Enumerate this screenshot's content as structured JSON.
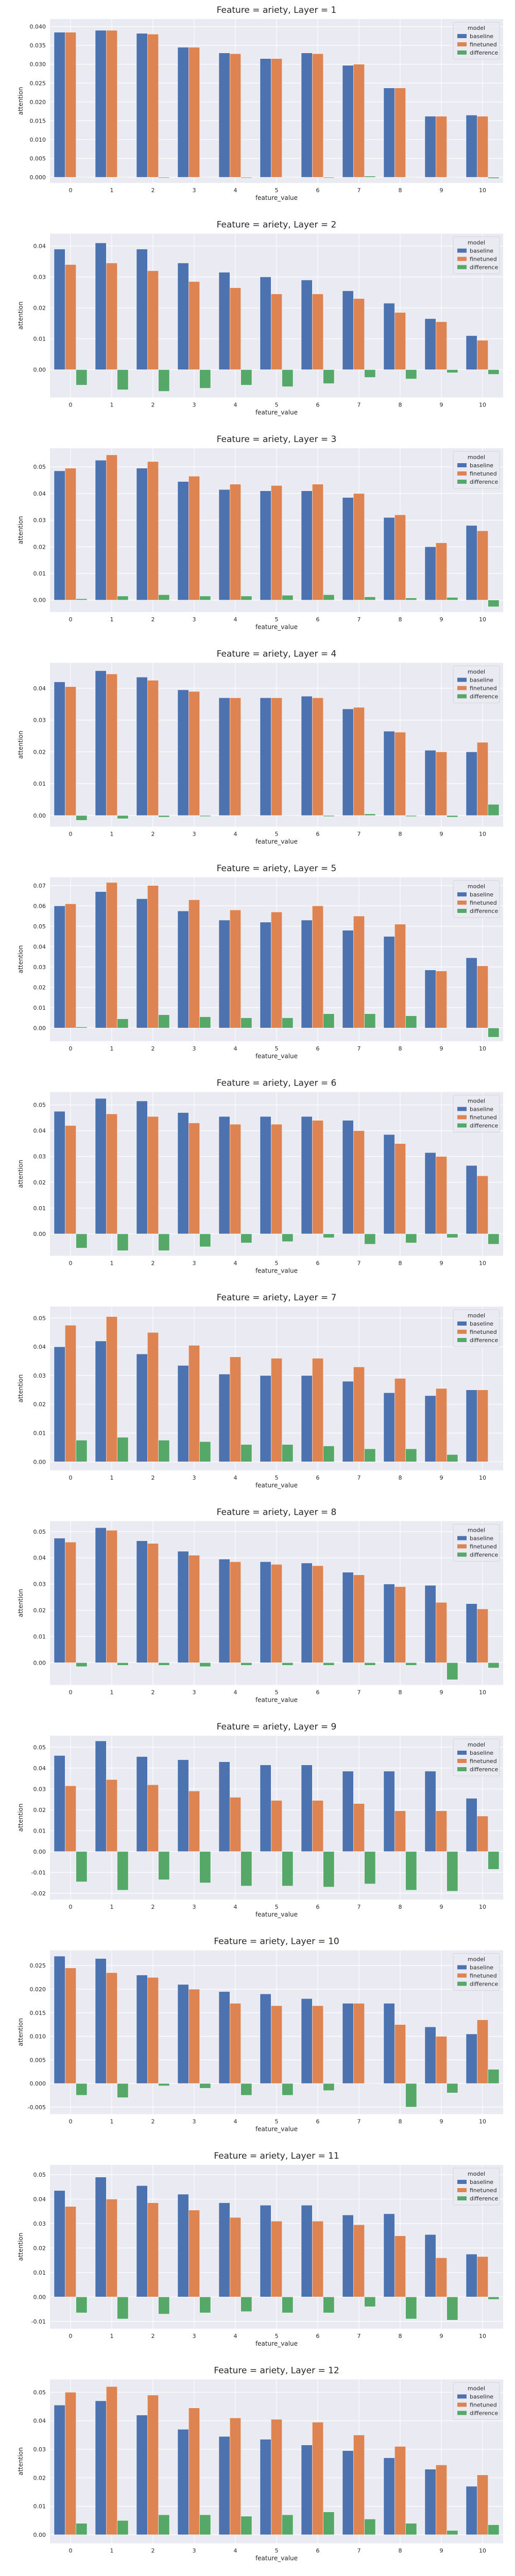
{
  "x_categories": [
    "0",
    "1",
    "2",
    "3",
    "4",
    "5",
    "6",
    "7",
    "8",
    "9",
    "10"
  ],
  "series_colors": {
    "baseline": "#4c72b0",
    "finetuned": "#dd8452",
    "difference": "#55a868"
  },
  "chart_data": [
    {
      "type": "bar",
      "title": "Feature = ariety, Layer = 1",
      "xlabel": "feature_value",
      "ylabel": "attention",
      "legend_title": "model",
      "legend_position": "top-right",
      "yticks": [
        "0.000",
        "0.005",
        "0.010",
        "0.015",
        "0.020",
        "0.025",
        "0.030",
        "0.035",
        "0.040"
      ],
      "categories": [
        "0",
        "1",
        "2",
        "3",
        "4",
        "5",
        "6",
        "7",
        "8",
        "9",
        "10"
      ],
      "series": [
        {
          "name": "baseline",
          "values": [
            0.0385,
            0.039,
            0.0382,
            0.0345,
            0.033,
            0.0315,
            0.033,
            0.0297,
            0.0237,
            0.0162,
            0.0165
          ]
        },
        {
          "name": "finetuned",
          "values": [
            0.0385,
            0.039,
            0.038,
            0.0345,
            0.0328,
            0.0315,
            0.0328,
            0.03,
            0.0237,
            0.0162,
            0.0162
          ]
        },
        {
          "name": "difference",
          "values": [
            0.0,
            0.0,
            -0.0002,
            0.0,
            -0.0002,
            0.0,
            -0.0002,
            0.0003,
            0.0,
            0.0,
            -0.0003
          ]
        }
      ]
    },
    {
      "type": "bar",
      "title": "Feature = ariety, Layer = 2",
      "xlabel": "feature_value",
      "ylabel": "attention",
      "legend_title": "model",
      "legend_position": "top-right",
      "yticks": [
        "0.00",
        "0.01",
        "0.02",
        "0.03",
        "0.04"
      ],
      "categories": [
        "0",
        "1",
        "2",
        "3",
        "4",
        "5",
        "6",
        "7",
        "8",
        "9",
        "10"
      ],
      "series": [
        {
          "name": "baseline",
          "values": [
            0.039,
            0.041,
            0.039,
            0.0345,
            0.0315,
            0.03,
            0.029,
            0.0255,
            0.0215,
            0.0165,
            0.011
          ]
        },
        {
          "name": "finetuned",
          "values": [
            0.034,
            0.0345,
            0.032,
            0.0285,
            0.0265,
            0.0245,
            0.0245,
            0.023,
            0.0185,
            0.0155,
            0.0095
          ]
        },
        {
          "name": "difference",
          "values": [
            -0.005,
            -0.0065,
            -0.007,
            -0.006,
            -0.005,
            -0.0055,
            -0.0045,
            -0.0025,
            -0.003,
            -0.001,
            -0.0015
          ]
        }
      ]
    },
    {
      "type": "bar",
      "title": "Feature = ariety, Layer = 3",
      "xlabel": "feature_value",
      "ylabel": "attention",
      "legend_title": "model",
      "legend_position": "top-right",
      "yticks": [
        "0.00",
        "0.01",
        "0.02",
        "0.03",
        "0.04",
        "0.05"
      ],
      "categories": [
        "0",
        "1",
        "2",
        "3",
        "4",
        "5",
        "6",
        "7",
        "8",
        "9",
        "10"
      ],
      "series": [
        {
          "name": "baseline",
          "values": [
            0.0485,
            0.0525,
            0.0495,
            0.0445,
            0.0415,
            0.041,
            0.041,
            0.0385,
            0.031,
            0.02,
            0.028
          ]
        },
        {
          "name": "finetuned",
          "values": [
            0.0495,
            0.0545,
            0.052,
            0.0465,
            0.0435,
            0.043,
            0.0435,
            0.04,
            0.032,
            0.0215,
            0.026
          ]
        },
        {
          "name": "difference",
          "values": [
            0.0005,
            0.0015,
            0.002,
            0.0015,
            0.0015,
            0.0018,
            0.002,
            0.0012,
            0.0008,
            0.001,
            -0.0025
          ]
        }
      ]
    },
    {
      "type": "bar",
      "title": "Feature = ariety, Layer = 4",
      "xlabel": "feature_value",
      "ylabel": "attention",
      "legend_title": "model",
      "legend_position": "top-right",
      "yticks": [
        "0.00",
        "0.01",
        "0.02",
        "0.03",
        "0.04"
      ],
      "categories": [
        "0",
        "1",
        "2",
        "3",
        "4",
        "5",
        "6",
        "7",
        "8",
        "9",
        "10"
      ],
      "series": [
        {
          "name": "baseline",
          "values": [
            0.042,
            0.0455,
            0.0435,
            0.0395,
            0.037,
            0.037,
            0.0375,
            0.0335,
            0.0265,
            0.0205,
            0.02
          ]
        },
        {
          "name": "finetuned",
          "values": [
            0.0405,
            0.0445,
            0.0425,
            0.039,
            0.037,
            0.037,
            0.037,
            0.034,
            0.0262,
            0.02,
            0.023
          ]
        },
        {
          "name": "difference",
          "values": [
            -0.0015,
            -0.001,
            -0.0005,
            -0.0003,
            0.0,
            0.0,
            -0.0003,
            0.0005,
            -0.0003,
            -0.0005,
            0.0035
          ]
        }
      ]
    },
    {
      "type": "bar",
      "title": "Feature = ariety, Layer = 5",
      "xlabel": "feature_value",
      "ylabel": "attention",
      "legend_title": "model",
      "legend_position": "top-right",
      "yticks": [
        "0.00",
        "0.01",
        "0.02",
        "0.03",
        "0.04",
        "0.05",
        "0.06",
        "0.07"
      ],
      "categories": [
        "0",
        "1",
        "2",
        "3",
        "4",
        "5",
        "6",
        "7",
        "8",
        "9",
        "10"
      ],
      "series": [
        {
          "name": "baseline",
          "values": [
            0.06,
            0.067,
            0.0635,
            0.0575,
            0.053,
            0.052,
            0.053,
            0.048,
            0.045,
            0.0285,
            0.0345
          ]
        },
        {
          "name": "finetuned",
          "values": [
            0.061,
            0.0715,
            0.07,
            0.063,
            0.058,
            0.057,
            0.06,
            0.055,
            0.051,
            0.028,
            0.0305
          ]
        },
        {
          "name": "difference",
          "values": [
            0.0005,
            0.0045,
            0.0065,
            0.0055,
            0.005,
            0.005,
            0.007,
            0.007,
            0.006,
            0.0,
            -0.0045
          ]
        }
      ]
    },
    {
      "type": "bar",
      "title": "Feature = ariety, Layer = 6",
      "xlabel": "feature_value",
      "ylabel": "attention",
      "legend_title": "model",
      "legend_position": "top-right",
      "yticks": [
        "0.00",
        "0.01",
        "0.02",
        "0.03",
        "0.04",
        "0.05"
      ],
      "categories": [
        "0",
        "1",
        "2",
        "3",
        "4",
        "5",
        "6",
        "7",
        "8",
        "9",
        "10"
      ],
      "series": [
        {
          "name": "baseline",
          "values": [
            0.0475,
            0.0525,
            0.0515,
            0.047,
            0.0455,
            0.0455,
            0.0455,
            0.044,
            0.0385,
            0.0315,
            0.0265
          ]
        },
        {
          "name": "finetuned",
          "values": [
            0.042,
            0.0465,
            0.0455,
            0.043,
            0.0425,
            0.0425,
            0.044,
            0.04,
            0.035,
            0.03,
            0.0225
          ]
        },
        {
          "name": "difference",
          "values": [
            -0.0055,
            -0.0065,
            -0.0065,
            -0.005,
            -0.0035,
            -0.003,
            -0.0015,
            -0.004,
            -0.0035,
            -0.0015,
            -0.004
          ]
        }
      ]
    },
    {
      "type": "bar",
      "title": "Feature = ariety, Layer = 7",
      "xlabel": "feature_value",
      "ylabel": "attention",
      "legend_title": "model",
      "legend_position": "top-right",
      "yticks": [
        "0.00",
        "0.01",
        "0.02",
        "0.03",
        "0.04",
        "0.05"
      ],
      "categories": [
        "0",
        "1",
        "2",
        "3",
        "4",
        "5",
        "6",
        "7",
        "8",
        "9",
        "10"
      ],
      "series": [
        {
          "name": "baseline",
          "values": [
            0.04,
            0.042,
            0.0375,
            0.0335,
            0.0305,
            0.03,
            0.03,
            0.028,
            0.024,
            0.023,
            0.025
          ]
        },
        {
          "name": "finetuned",
          "values": [
            0.0475,
            0.0505,
            0.045,
            0.0405,
            0.0365,
            0.036,
            0.036,
            0.033,
            0.029,
            0.0255,
            0.025
          ]
        },
        {
          "name": "difference",
          "values": [
            0.0075,
            0.0085,
            0.0075,
            0.007,
            0.006,
            0.006,
            0.0055,
            0.0045,
            0.0045,
            0.0025,
            0.0
          ]
        }
      ]
    },
    {
      "type": "bar",
      "title": "Feature = ariety, Layer = 8",
      "xlabel": "feature_value",
      "ylabel": "attention",
      "legend_title": "model",
      "legend_position": "top-right",
      "yticks": [
        "0.00",
        "0.01",
        "0.02",
        "0.03",
        "0.04",
        "0.05"
      ],
      "categories": [
        "0",
        "1",
        "2",
        "3",
        "4",
        "5",
        "6",
        "7",
        "8",
        "9",
        "10"
      ],
      "series": [
        {
          "name": "baseline",
          "values": [
            0.0475,
            0.0515,
            0.0465,
            0.0425,
            0.0395,
            0.0385,
            0.038,
            0.0345,
            0.03,
            0.0295,
            0.0225
          ]
        },
        {
          "name": "finetuned",
          "values": [
            0.046,
            0.0505,
            0.0455,
            0.041,
            0.0385,
            0.0375,
            0.037,
            0.0335,
            0.029,
            0.023,
            0.0205
          ]
        },
        {
          "name": "difference",
          "values": [
            -0.0015,
            -0.001,
            -0.001,
            -0.0015,
            -0.001,
            -0.001,
            -0.001,
            -0.001,
            -0.001,
            -0.0065,
            -0.002
          ]
        }
      ]
    },
    {
      "type": "bar",
      "title": "Feature = ariety, Layer = 9",
      "xlabel": "feature_value",
      "ylabel": "attention",
      "legend_title": "model",
      "legend_position": "top-right",
      "yticks": [
        "-0.02",
        "-0.01",
        "0.00",
        "0.01",
        "0.02",
        "0.03",
        "0.04",
        "0.05"
      ],
      "categories": [
        "0",
        "1",
        "2",
        "3",
        "4",
        "5",
        "6",
        "7",
        "8",
        "9",
        "10"
      ],
      "series": [
        {
          "name": "baseline",
          "values": [
            0.046,
            0.053,
            0.0455,
            0.044,
            0.043,
            0.0415,
            0.0415,
            0.0385,
            0.0385,
            0.0385,
            0.0255
          ]
        },
        {
          "name": "finetuned",
          "values": [
            0.0315,
            0.0345,
            0.032,
            0.029,
            0.026,
            0.0245,
            0.0245,
            0.023,
            0.0195,
            0.0195,
            0.017
          ]
        },
        {
          "name": "difference",
          "values": [
            -0.0145,
            -0.0185,
            -0.0135,
            -0.015,
            -0.0165,
            -0.0165,
            -0.017,
            -0.0155,
            -0.0185,
            -0.019,
            -0.0085
          ]
        }
      ]
    },
    {
      "type": "bar",
      "title": "Feature = ariety, Layer = 10",
      "xlabel": "feature_value",
      "ylabel": "attention",
      "legend_title": "model",
      "legend_position": "top-right",
      "yticks": [
        "-0.005",
        "0.000",
        "0.005",
        "0.010",
        "0.015",
        "0.020",
        "0.025"
      ],
      "categories": [
        "0",
        "1",
        "2",
        "3",
        "4",
        "5",
        "6",
        "7",
        "8",
        "9",
        "10"
      ],
      "series": [
        {
          "name": "baseline",
          "values": [
            0.027,
            0.0265,
            0.023,
            0.021,
            0.0195,
            0.019,
            0.018,
            0.017,
            0.017,
            0.012,
            0.0105
          ]
        },
        {
          "name": "finetuned",
          "values": [
            0.0245,
            0.0235,
            0.0225,
            0.02,
            0.017,
            0.0165,
            0.0165,
            0.017,
            0.0125,
            0.01,
            0.0135
          ]
        },
        {
          "name": "difference",
          "values": [
            -0.0025,
            -0.003,
            -0.0005,
            -0.001,
            -0.0025,
            -0.0025,
            -0.0015,
            0.0,
            -0.005,
            -0.002,
            0.003
          ]
        }
      ]
    },
    {
      "type": "bar",
      "title": "Feature = ariety, Layer = 11",
      "xlabel": "feature_value",
      "ylabel": "attention",
      "legend_title": "model",
      "legend_position": "top-right",
      "yticks": [
        "-0.01",
        "0.00",
        "0.01",
        "0.02",
        "0.03",
        "0.04",
        "0.05"
      ],
      "categories": [
        "0",
        "1",
        "2",
        "3",
        "4",
        "5",
        "6",
        "7",
        "8",
        "9",
        "10"
      ],
      "series": [
        {
          "name": "baseline",
          "values": [
            0.0435,
            0.049,
            0.0455,
            0.042,
            0.0385,
            0.0375,
            0.0375,
            0.0335,
            0.034,
            0.0255,
            0.0175
          ]
        },
        {
          "name": "finetuned",
          "values": [
            0.037,
            0.04,
            0.0385,
            0.0355,
            0.0325,
            0.031,
            0.031,
            0.0295,
            0.025,
            0.016,
            0.0165
          ]
        },
        {
          "name": "difference",
          "values": [
            -0.0065,
            -0.009,
            -0.007,
            -0.0065,
            -0.006,
            -0.0065,
            -0.0065,
            -0.004,
            -0.009,
            -0.0095,
            -0.001
          ]
        }
      ]
    },
    {
      "type": "bar",
      "title": "Feature = ariety, Layer = 12",
      "xlabel": "feature_value",
      "ylabel": "attention",
      "legend_title": "model",
      "legend_position": "top-right",
      "yticks": [
        "0.00",
        "0.01",
        "0.02",
        "0.03",
        "0.04",
        "0.05"
      ],
      "categories": [
        "0",
        "1",
        "2",
        "3",
        "4",
        "5",
        "6",
        "7",
        "8",
        "9",
        "10"
      ],
      "series": [
        {
          "name": "baseline",
          "values": [
            0.0455,
            0.047,
            0.042,
            0.037,
            0.0345,
            0.0335,
            0.0315,
            0.0295,
            0.027,
            0.023,
            0.017
          ]
        },
        {
          "name": "finetuned",
          "values": [
            0.05,
            0.052,
            0.049,
            0.0445,
            0.041,
            0.0405,
            0.0395,
            0.035,
            0.031,
            0.0245,
            0.021
          ]
        },
        {
          "name": "difference",
          "values": [
            0.004,
            0.005,
            0.007,
            0.007,
            0.0065,
            0.007,
            0.008,
            0.0055,
            0.004,
            0.0015,
            0.0035
          ]
        }
      ]
    }
  ]
}
